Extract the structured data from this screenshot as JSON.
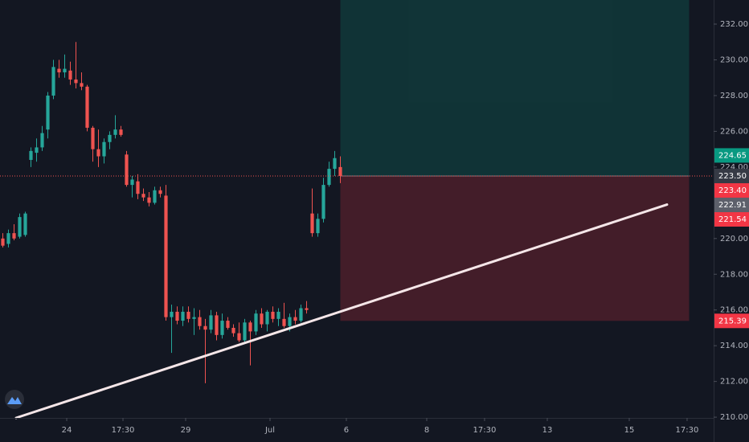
{
  "chart_data": {
    "type": "candlestick",
    "x": [
      0,
      1,
      2,
      3,
      4,
      5,
      6,
      7,
      8,
      9,
      10,
      11,
      12,
      13,
      14,
      15,
      16,
      17,
      18,
      19,
      20,
      21,
      22,
      23,
      24,
      25,
      26,
      27,
      28,
      29,
      30,
      31,
      32,
      33,
      34,
      35,
      36,
      37,
      38,
      39,
      40,
      41,
      42,
      43,
      44,
      45,
      46,
      47,
      48,
      49,
      50,
      51,
      52,
      53,
      54,
      55,
      56,
      57,
      58,
      59,
      60
    ],
    "open": [
      220.0,
      219.7,
      220.3,
      220.1,
      220.2,
      224.4,
      224.8,
      225.1,
      226.1,
      228.0,
      229.5,
      229.3,
      229.4,
      228.9,
      228.7,
      228.5,
      226.2,
      225.0,
      224.6,
      225.4,
      225.8,
      226.1,
      224.7,
      223.0,
      223.2,
      222.5,
      222.3,
      222.0,
      222.7,
      222.4,
      215.6,
      215.9,
      215.4,
      215.9,
      215.5,
      215.6,
      215.1,
      214.9,
      215.7,
      214.6,
      215.4,
      215.0,
      214.7,
      214.3,
      215.3,
      214.8,
      215.8,
      215.2,
      215.9,
      215.5,
      215.5,
      215.1,
      215.6,
      215.4,
      216.1,
      221.4,
      220.3,
      221.1,
      223.0,
      223.9,
      224.0
    ],
    "high": [
      220.3,
      220.5,
      220.8,
      221.4,
      221.5,
      225.1,
      225.6,
      226.3,
      228.2,
      230.0,
      230.0,
      230.3,
      229.9,
      231.0,
      229.3,
      228.6,
      226.3,
      226.1,
      225.6,
      226.0,
      226.9,
      226.3,
      224.9,
      223.5,
      223.6,
      222.8,
      222.6,
      222.9,
      222.9,
      223.0,
      216.3,
      216.2,
      216.2,
      216.2,
      216.1,
      216.0,
      215.5,
      216.0,
      215.9,
      215.8,
      215.6,
      215.2,
      215.3,
      215.5,
      215.4,
      216.0,
      216.1,
      216.0,
      216.2,
      216.1,
      216.4,
      215.8,
      216.0,
      216.3,
      216.5,
      222.8,
      221.4,
      223.4,
      224.3,
      224.9,
      224.6
    ],
    "low": [
      219.5,
      219.5,
      219.9,
      220.0,
      220.1,
      224.0,
      224.3,
      224.9,
      225.6,
      227.8,
      229.0,
      229.0,
      228.6,
      228.4,
      228.3,
      226.0,
      224.3,
      224.0,
      224.2,
      225.0,
      225.6,
      225.7,
      222.9,
      222.3,
      222.2,
      222.1,
      221.8,
      221.9,
      222.3,
      215.4,
      213.6,
      215.2,
      215.1,
      215.3,
      214.6,
      214.9,
      211.9,
      214.7,
      214.3,
      214.4,
      214.9,
      214.5,
      214.2,
      214.1,
      212.9,
      214.6,
      215.0,
      214.8,
      215.3,
      215.1,
      215.0,
      214.8,
      215.2,
      215.3,
      215.8,
      220.1,
      220.1,
      220.9,
      222.9,
      223.5,
      223.1
    ],
    "close": [
      219.6,
      220.3,
      220.0,
      221.2,
      221.4,
      224.9,
      225.1,
      225.9,
      228.0,
      229.6,
      229.3,
      229.5,
      228.9,
      228.7,
      228.5,
      226.2,
      225.0,
      224.6,
      225.4,
      225.8,
      226.1,
      225.8,
      223.0,
      223.3,
      222.5,
      222.3,
      222.0,
      222.7,
      222.5,
      215.6,
      215.9,
      215.4,
      215.9,
      215.5,
      215.6,
      215.1,
      214.9,
      215.7,
      214.6,
      215.4,
      215.0,
      214.7,
      214.3,
      215.3,
      214.8,
      215.8,
      215.2,
      215.9,
      215.5,
      215.9,
      215.1,
      215.6,
      215.4,
      216.1,
      216.0,
      220.3,
      221.1,
      223.0,
      223.9,
      224.5,
      223.5
    ],
    "up_color": "#26a69a",
    "down_color": "#ef5350",
    "xlim": [
      -0.5,
      126.36
    ],
    "xticks": [
      {
        "value": 11.36,
        "label": "24"
      },
      {
        "value": 21.36,
        "label": "17:30"
      },
      {
        "value": 32.5,
        "label": "29"
      },
      {
        "value": 47.5,
        "label": "Jul"
      },
      {
        "value": 61.07,
        "label": "6"
      },
      {
        "value": 75.36,
        "label": "8"
      },
      {
        "value": 85.64,
        "label": "17:30"
      },
      {
        "value": 96.79,
        "label": "13"
      },
      {
        "value": 111.36,
        "label": "15"
      },
      {
        "value": 121.64,
        "label": "17:30"
      }
    ],
    "ylim": [
      209.96,
      233.35
    ],
    "yticks": [
      {
        "value": 210,
        "label": "210.00"
      },
      {
        "value": 212,
        "label": "212.00"
      },
      {
        "value": 214,
        "label": "214.00"
      },
      {
        "value": 216,
        "label": "216.00"
      },
      {
        "value": 218,
        "label": "218.00"
      },
      {
        "value": 220,
        "label": "220.00"
      },
      {
        "value": 224,
        "label": "224.00"
      },
      {
        "value": 226,
        "label": "226.00"
      },
      {
        "value": 228,
        "label": "228.00"
      },
      {
        "value": 230,
        "label": "230.00"
      },
      {
        "value": 232,
        "label": "232.00"
      }
    ],
    "position": {
      "x": [
        60,
        122
      ],
      "entry": 223.5,
      "stop": 215.39,
      "profit_color": "rgba(8,153,129,0.22)",
      "loss_color": "rgba(242,54,69,0.22)"
    },
    "trendline": {
      "x": [
        2.36,
        118.07
      ],
      "y": [
        209.96,
        221.9
      ],
      "color": "#f5e6e8"
    },
    "price_labels": [
      {
        "value": 224.65,
        "label": "224.65",
        "color": "#089981"
      },
      {
        "value": 223.5,
        "label": "223.50",
        "color": "#363a45"
      },
      {
        "value": 223.4,
        "label": "223.40",
        "color": "#f23645"
      },
      {
        "value": 222.91,
        "label": "222.91",
        "color": "#5d606b"
      },
      {
        "value": 221.54,
        "label": "221.54",
        "color": "#f23645"
      },
      {
        "value": 215.39,
        "label": "215.39",
        "color": "#f23645"
      }
    ]
  }
}
